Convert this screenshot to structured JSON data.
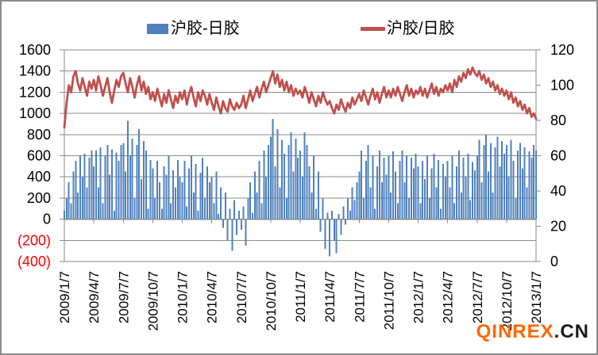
{
  "legend": {
    "bar_label": "沪胶-日胶",
    "line_label": "沪胶/日胶"
  },
  "watermark": {
    "brand": "QINREX",
    "suffix": ".CN"
  },
  "colors": {
    "bar": "#4F81BD",
    "line": "#C0504D",
    "grid": "#8a8a8a",
    "axis": "#8a8a8a",
    "tick_label": "#000000",
    "negative_tick_label": "#FF0000",
    "watermark_brand": "#FF6600",
    "watermark_suffix": "#1a1a1a"
  },
  "chart_data": {
    "type": "bar",
    "subtype": "combo-bar-line-dual-axis",
    "title": "",
    "xlabel": "",
    "ylabel": "",
    "grid": true,
    "legend_position": "top",
    "x_tick_labels": [
      "2009/1/7",
      "2009/4/7",
      "2009/7/7",
      "2009/10/7",
      "2010/1/7",
      "2010/4/7",
      "2010/7/7",
      "2010/10/7",
      "2011/1/7",
      "2011/4/7",
      "2011/7/7",
      "2011/10/7",
      "2012/1/7",
      "2012/4/7",
      "2012/7/7",
      "2012/10/7",
      "2013/1/7"
    ],
    "points_per_tick_interval": 13,
    "left_axis": {
      "min": -400,
      "max": 1600,
      "step": 200,
      "tick_labels": [
        "1600",
        "1400",
        "1200",
        "1000",
        "800",
        "600",
        "400",
        "200",
        "0",
        "(200)",
        "(400)"
      ],
      "negative_format": "red-parentheses"
    },
    "right_axis": {
      "min": 0,
      "max": 120,
      "step": 20,
      "tick_labels": [
        "120",
        "100",
        "80",
        "60",
        "40",
        "20",
        "0"
      ]
    },
    "series": [
      {
        "name": "沪胶-日胶",
        "type": "bar",
        "axis": "left",
        "color": "#4F81BD",
        "values": [
          80,
          200,
          350,
          150,
          450,
          550,
          250,
          600,
          400,
          620,
          300,
          580,
          650,
          500,
          650,
          300,
          680,
          150,
          600,
          700,
          420,
          660,
          80,
          630,
          550,
          700,
          720,
          450,
          930,
          600,
          760,
          200,
          700,
          850,
          380,
          740,
          650,
          100,
          560,
          480,
          200,
          550,
          350,
          100,
          500,
          420,
          600,
          150,
          460,
          300,
          560,
          400,
          350,
          550,
          120,
          480,
          600,
          250,
          520,
          80,
          440,
          580,
          200,
          500,
          350,
          400,
          150,
          450,
          50,
          300,
          -80,
          250,
          -200,
          100,
          -300,
          180,
          -150,
          80,
          -100,
          120,
          -250,
          200,
          350,
          60,
          450,
          250,
          550,
          150,
          650,
          400,
          700,
          780,
          950,
          500,
          850,
          300,
          750,
          620,
          200,
          700,
          820,
          450,
          760,
          580,
          650,
          400,
          820,
          700,
          500,
          250,
          600,
          100,
          450,
          -120,
          200,
          -280,
          60,
          -350,
          80,
          -200,
          -320,
          50,
          -150,
          120,
          -50,
          200,
          80,
          300,
          180,
          350,
          450,
          650,
          200,
          550,
          700,
          300,
          600,
          100,
          500,
          650,
          350,
          580,
          420,
          600,
          250,
          640,
          450,
          150,
          550,
          650,
          350,
          600,
          200,
          580,
          480,
          620,
          500,
          150,
          550,
          380,
          600,
          200,
          480,
          620,
          300,
          560,
          100,
          520,
          400,
          550,
          300,
          600,
          150,
          500,
          650,
          250,
          580,
          400,
          620,
          180,
          540,
          460,
          600,
          750,
          350,
          700,
          800,
          450,
          720,
          250,
          680,
          780,
          500,
          740,
          620,
          700,
          400,
          750,
          550,
          200,
          650,
          720,
          480,
          680,
          300,
          640,
          580,
          700,
          650
        ]
      },
      {
        "name": "沪胶/日胶",
        "type": "line",
        "axis": "right",
        "color": "#C0504D",
        "values": [
          76,
          90,
          100,
          96,
          105,
          108,
          101,
          97,
          104,
          99,
          94,
          102,
          98,
          103,
          97,
          105,
          100,
          94,
          99,
          104,
          96,
          90,
          97,
          103,
          99,
          105,
          107,
          101,
          96,
          104,
          99,
          93,
          100,
          105,
          97,
          102,
          95,
          99,
          92,
          96,
          91,
          98,
          93,
          88,
          95,
          90,
          97,
          92,
          87,
          94,
          90,
          96,
          92,
          97,
          89,
          95,
          99,
          93,
          88,
          96,
          91,
          97,
          94,
          89,
          95,
          90,
          86,
          93,
          88,
          84,
          91,
          87,
          85,
          92,
          88,
          86,
          90,
          87,
          89,
          94,
          87,
          92,
          97,
          91,
          95,
          99,
          93,
          98,
          102,
          96,
          100,
          104,
          108,
          101,
          106,
          99,
          103,
          97,
          102,
          96,
          100,
          94,
          98,
          95,
          97,
          93,
          99,
          95,
          90,
          96,
          92,
          88,
          94,
          90,
          96,
          92,
          89,
          91,
          87,
          84,
          89,
          86,
          92,
          88,
          85,
          90,
          87,
          93,
          89,
          92,
          95,
          91,
          97,
          93,
          89,
          94,
          98,
          92,
          96,
          90,
          95,
          99,
          93,
          97,
          93,
          98,
          94,
          99,
          95,
          91,
          96,
          100,
          94,
          98,
          93,
          97,
          95,
          99,
          94,
          98,
          93,
          97,
          101,
          95,
          99,
          94,
          98,
          96,
          100,
          97,
          101,
          96,
          103,
          99,
          105,
          102,
          107,
          104,
          109,
          106,
          110,
          107,
          105,
          108,
          103,
          106,
          101,
          104,
          99,
          102,
          97,
          100,
          95,
          98,
          94,
          97,
          92,
          96,
          90,
          93,
          88,
          91,
          86,
          89,
          84,
          87,
          82,
          84,
          81
        ]
      }
    ]
  }
}
